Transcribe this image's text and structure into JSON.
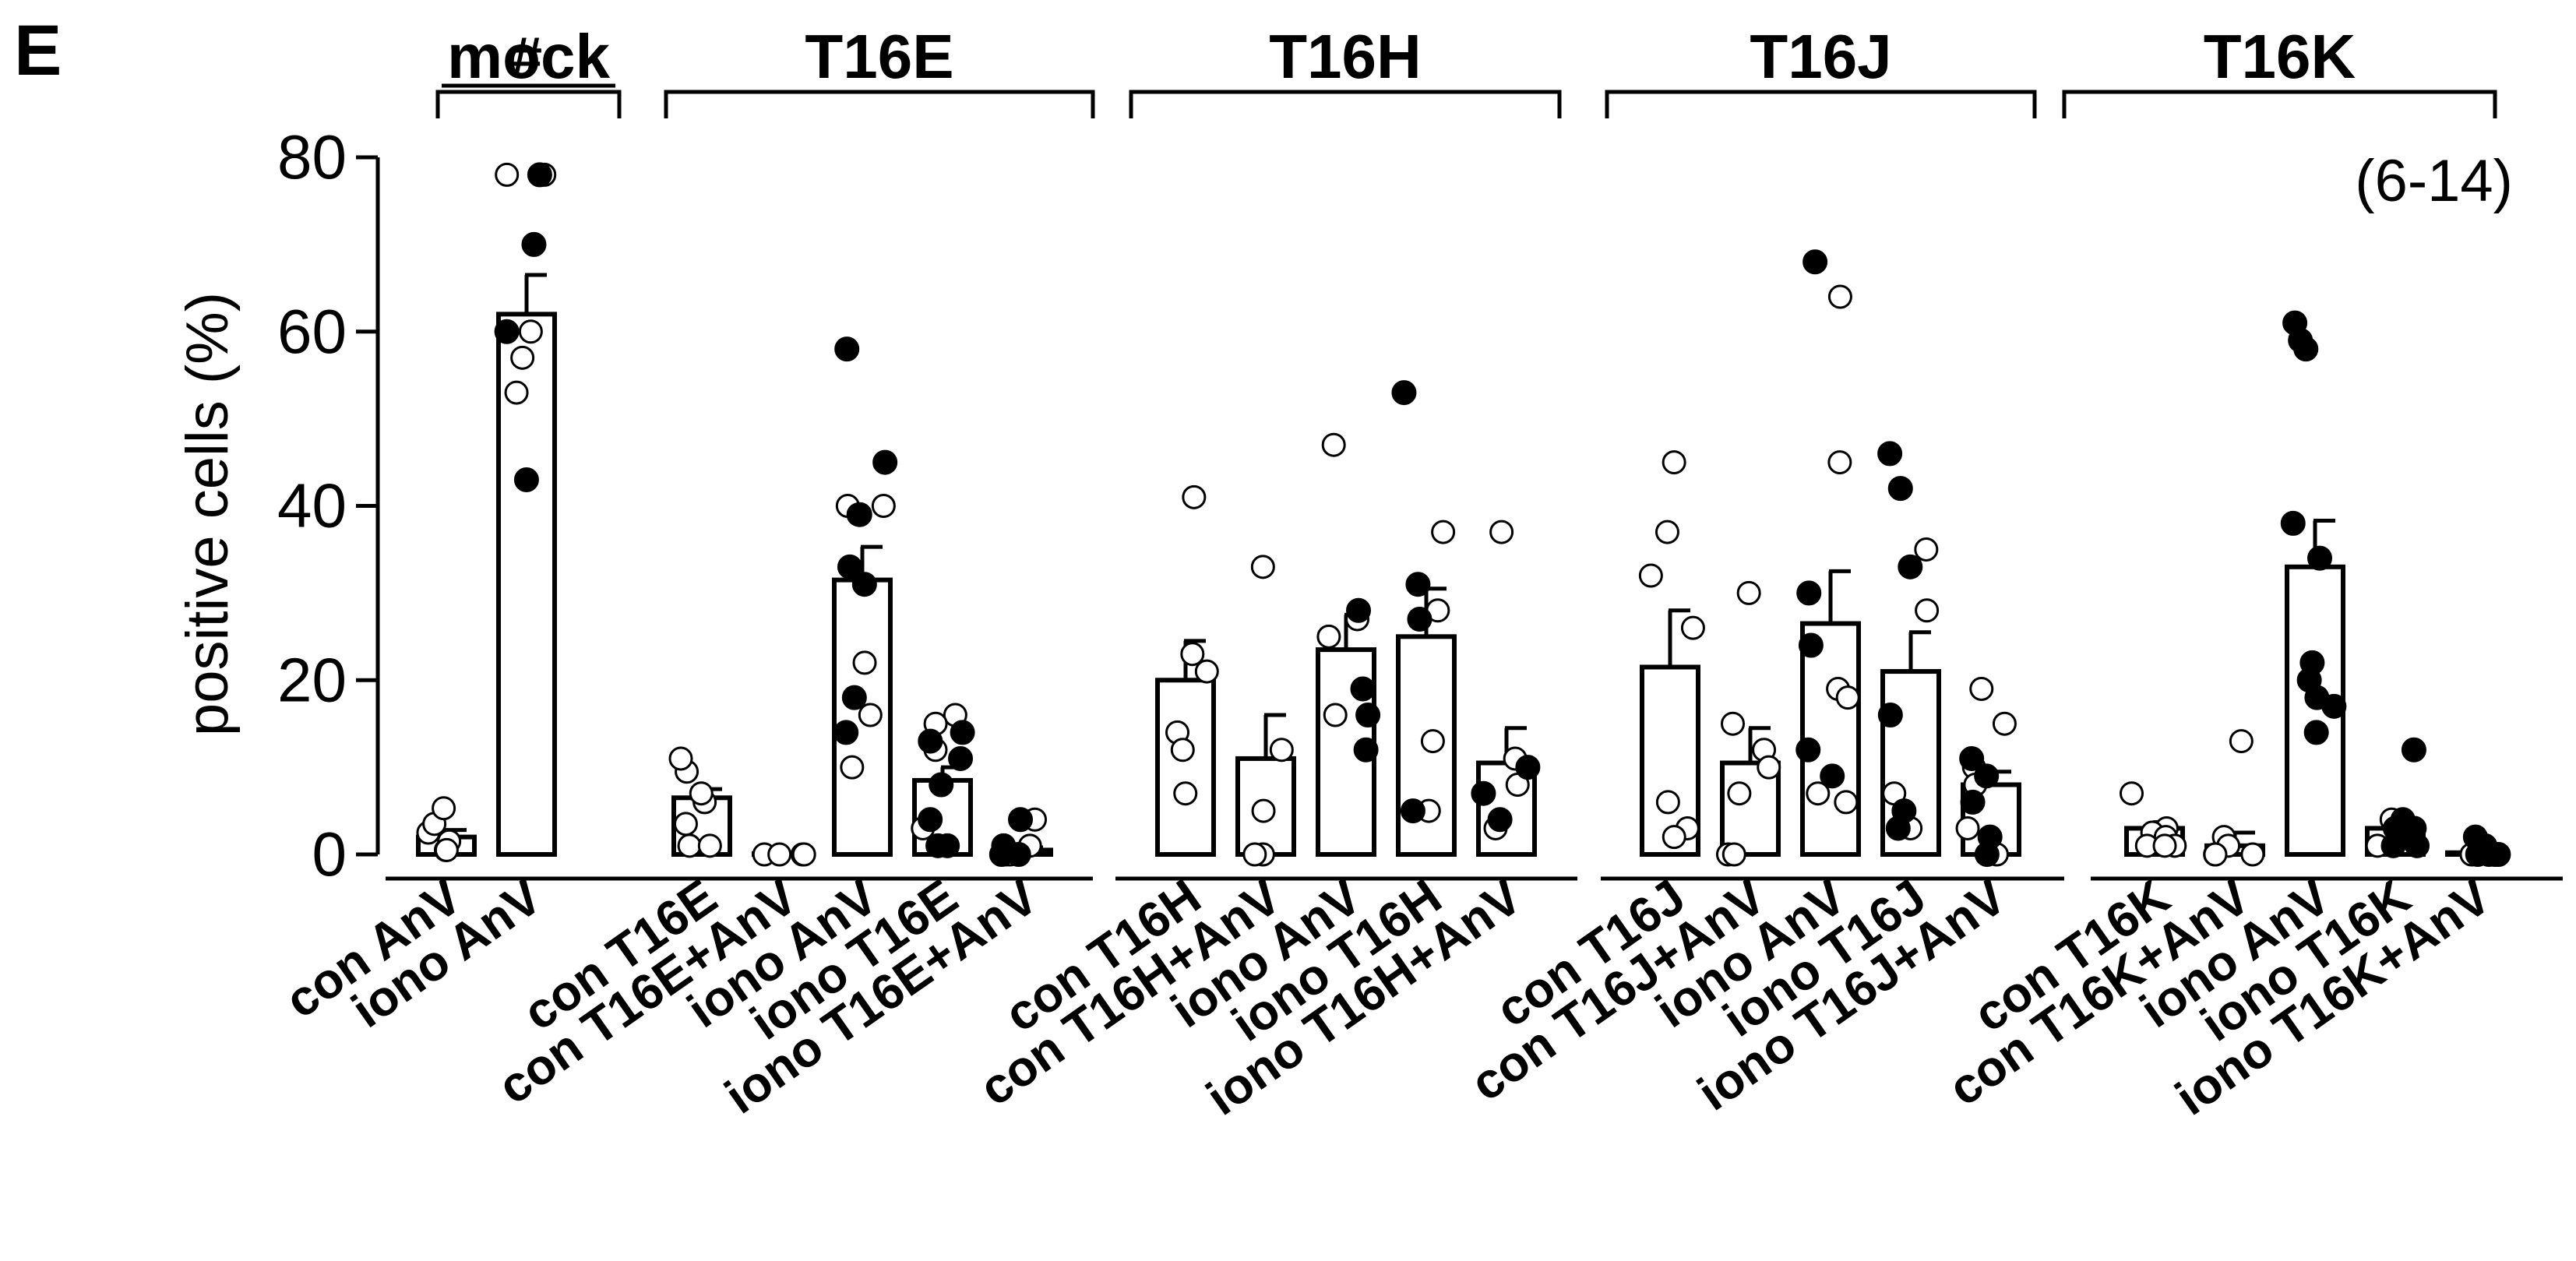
{
  "panel_label": "E",
  "n_note": "(6-14)",
  "significance_mark": "#",
  "chart_data": {
    "type": "bar",
    "ylabel": "positive cells (%)",
    "ylim": [
      0,
      80
    ],
    "yticks": [
      0,
      20,
      40,
      60,
      80
    ],
    "grid": false,
    "groups": [
      {
        "label": "mock",
        "bars": [
          {
            "label": "con AnV",
            "value": 2,
            "sem": 0.8,
            "open": [
              0.5,
              1.5,
              2.5,
              3.5,
              5.3,
              0.5
            ],
            "filled": []
          },
          {
            "label": "iono AnV",
            "value": 62,
            "sem": 4.5,
            "open": [
              78,
              78,
              60,
              57,
              53
            ],
            "filled": [
              78,
              70,
              60,
              43
            ]
          }
        ]
      },
      {
        "label": "T16E",
        "bars": [
          {
            "label": "con T16E",
            "value": 6.5,
            "sem": 1,
            "open": [
              1,
              1,
              3.5,
              6,
              7,
              9.5,
              11
            ],
            "filled": []
          },
          {
            "label": "con T16E+AnV",
            "value": 0.1,
            "sem": 0,
            "open": [
              0,
              0,
              0,
              0
            ],
            "filled": []
          },
          {
            "label": "iono AnV",
            "value": 31.5,
            "sem": 3.8,
            "open": [
              40,
              40,
              39,
              22,
              16,
              10
            ],
            "filled": [
              58,
              45,
              39,
              33,
              31,
              18,
              14
            ]
          },
          {
            "label": "iono T16E",
            "value": 8.5,
            "sem": 1.5,
            "open": [
              16,
              15,
              12,
              3
            ],
            "filled": [
              14,
              13,
              11,
              8,
              4,
              1,
              1
            ]
          },
          {
            "label": "iono T16E+AnV",
            "value": 0.5,
            "sem": 0.3,
            "open": [
              4,
              1,
              0,
              0
            ],
            "filled": [
              4,
              1,
              0,
              0
            ]
          }
        ]
      },
      {
        "label": "T16H",
        "bars": [
          {
            "label": "con T16H",
            "value": 20,
            "sem": 4.5,
            "open": [
              41,
              23,
              21,
              14,
              12,
              7
            ],
            "filled": []
          },
          {
            "label": "con T16H+AnV",
            "value": 11,
            "sem": 5,
            "open": [
              33,
              12,
              5,
              0,
              0
            ],
            "filled": []
          },
          {
            "label": "iono AnV",
            "value": 23.5,
            "sem": 4,
            "open": [
              47,
              27,
              25,
              16
            ],
            "filled": [
              28,
              19,
              16,
              12
            ]
          },
          {
            "label": "iono T16H",
            "value": 25,
            "sem": 5.5,
            "open": [
              37,
              28,
              13,
              5
            ],
            "filled": [
              53,
              31,
              27,
              5
            ]
          },
          {
            "label": "iono T16H+AnV",
            "value": 10.5,
            "sem": 4,
            "open": [
              37,
              11,
              8,
              3
            ],
            "filled": [
              10,
              7,
              4
            ]
          }
        ]
      },
      {
        "label": "T16J",
        "bars": [
          {
            "label": "con T16J",
            "value": 21.5,
            "sem": 6.5,
            "open": [
              45,
              37,
              32,
              26,
              6,
              3,
              2
            ],
            "filled": []
          },
          {
            "label": "con T16J+AnV",
            "value": 10.5,
            "sem": 4,
            "open": [
              30,
              15,
              12,
              10,
              7,
              0,
              0
            ],
            "filled": []
          },
          {
            "label": "iono AnV",
            "value": 26.5,
            "sem": 6,
            "open": [
              64,
              45,
              19,
              18,
              7,
              6
            ],
            "filled": [
              68,
              30,
              24,
              12,
              9
            ]
          },
          {
            "label": "iono T16J",
            "value": 21,
            "sem": 4.5,
            "open": [
              35,
              28,
              7,
              3
            ],
            "filled": [
              46,
              42,
              33,
              16,
              5,
              3
            ]
          },
          {
            "label": "iono T16J+AnV",
            "value": 8,
            "sem": 1.5,
            "open": [
              19,
              15,
              10,
              8,
              3,
              0
            ],
            "filled": [
              11,
              9,
              6,
              2,
              0
            ]
          }
        ]
      },
      {
        "label": "T16K",
        "bars": [
          {
            "label": "con T16K",
            "value": 3,
            "sem": 0.7,
            "open": [
              7,
              3,
              2.5,
              2,
              1,
              1,
              1
            ],
            "filled": []
          },
          {
            "label": "con T16K+AnV",
            "value": 1,
            "sem": 1.5,
            "open": [
              13,
              2,
              1,
              0,
              0,
              0
            ],
            "filled": []
          },
          {
            "label": "iono AnV",
            "value": 33,
            "sem": 5.3,
            "open": [],
            "filled": [
              61,
              59,
              58,
              38,
              34,
              22,
              20,
              18,
              17,
              14
            ]
          },
          {
            "label": "iono T16K",
            "value": 3,
            "sem": 0.8,
            "open": [
              4,
              1
            ],
            "filled": [
              12,
              4,
              3,
              3,
              2,
              1,
              1
            ]
          },
          {
            "label": "iono T16K+AnV",
            "value": 0.2,
            "sem": 0.1,
            "open": [
              0,
              0
            ],
            "filled": [
              2,
              1,
              0,
              0,
              0,
              0
            ]
          }
        ]
      }
    ]
  }
}
